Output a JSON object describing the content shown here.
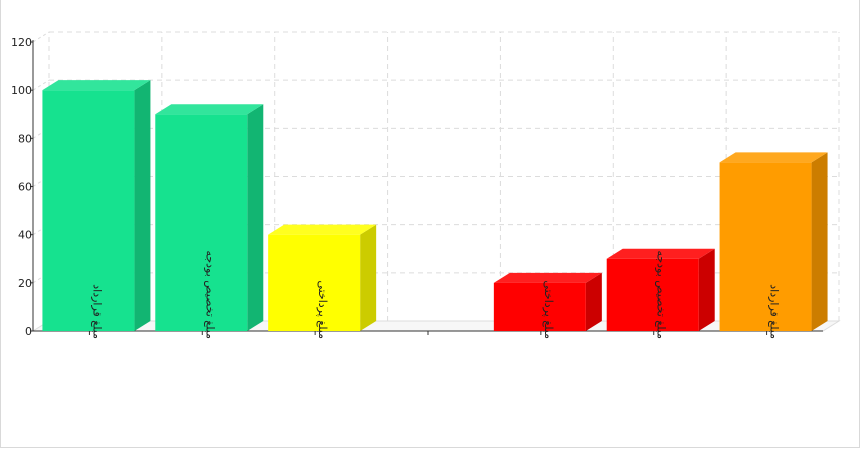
{
  "chart_data": {
    "type": "bar",
    "title": "",
    "xlabel": "",
    "ylabel": "",
    "ylim": [
      0,
      120
    ],
    "yticks": [
      "0",
      "20",
      "40",
      "60",
      "80",
      "100",
      "120"
    ],
    "grid": true,
    "categories": [
      "مبلغ قرارداد",
      "مبلغ تخصیص بودجه",
      "مبلغ پرداختی",
      "",
      "مبلغ پرداختی",
      "مبلغ تخصیص بودجه",
      "مبلغ قرارداد"
    ],
    "values": [
      100,
      90,
      40,
      0,
      20,
      30,
      70
    ],
    "colors": [
      "#16e28f",
      "#16e28f",
      "#ffff00",
      "#ffffff",
      "#ff0000",
      "#ff0000",
      "#ff9c00"
    ]
  }
}
